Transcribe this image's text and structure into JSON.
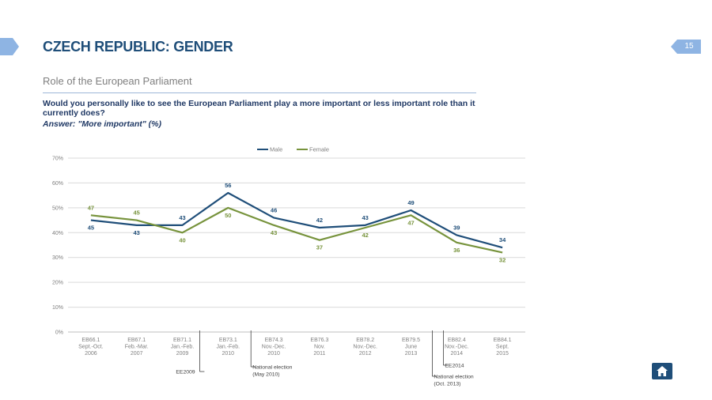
{
  "header": {
    "title": "CZECH REPUBLIC: GENDER",
    "subtitle": "Role of the European Parliament",
    "question": "Would you personally like to see the European Parliament play a more important or less important role than it currently does?",
    "answer": "Answer: \"More important\" (%)",
    "page_number": "15"
  },
  "icons": {
    "home": "home-icon",
    "left_tab": "arrow-tab-icon"
  },
  "colors": {
    "male": "#1f4e79",
    "female": "#77933c",
    "accent": "#8eb4e3"
  },
  "chart_data": {
    "type": "line",
    "categories": [
      [
        "EB66.1",
        "Sept.-Oct.",
        "2006"
      ],
      [
        "EB67.1",
        "Feb.-Mar.",
        "2007"
      ],
      [
        "EB71.1",
        "Jan.-Feb.",
        "2009"
      ],
      [
        "EB73.1",
        "Jan.-Feb.",
        "2010"
      ],
      [
        "EB74.3",
        "Nov.-Dec.",
        "2010"
      ],
      [
        "EB76.3",
        "Nov.",
        "2011"
      ],
      [
        "EB78.2",
        "Nov.-Dec.",
        "2012"
      ],
      [
        "EB79.5",
        "June",
        "2013"
      ],
      [
        "EB82.4",
        "Nov.-Dec.",
        "2014"
      ],
      [
        "EB84.1",
        "Sept.",
        "2015"
      ]
    ],
    "series": [
      {
        "name": "Male",
        "values": [
          45,
          43,
          43,
          56,
          46,
          42,
          43,
          49,
          39,
          34
        ],
        "color": "#1f4e79"
      },
      {
        "name": "Female",
        "values": [
          47,
          45,
          40,
          50,
          43,
          37,
          42,
          47,
          36,
          32
        ],
        "color": "#77933c"
      }
    ],
    "ylim": [
      0,
      70
    ],
    "yticks": [
      "0%",
      "10%",
      "20%",
      "30%",
      "40%",
      "50%",
      "60%",
      "70%"
    ],
    "grid": true,
    "legend": "top-center",
    "annotations": [
      {
        "after_index": 2,
        "lines": [
          "EE2009"
        ]
      },
      {
        "after_index": 3,
        "lines": [
          "National election",
          "(May 2010)"
        ]
      },
      {
        "after_index": 7,
        "lines": [
          "EE2014"
        ]
      },
      {
        "after_index": 7,
        "lines": [
          "National election",
          "(Oct. 2013)"
        ]
      }
    ]
  }
}
